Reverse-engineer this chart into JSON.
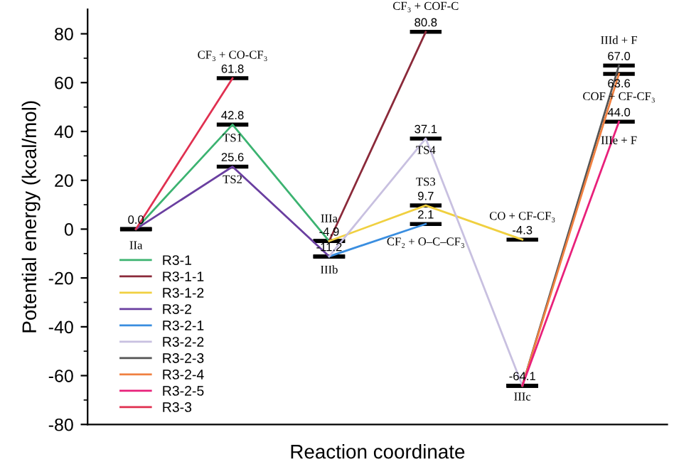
{
  "chart_data": {
    "type": "line",
    "xlabel": "Reaction coordinate",
    "ylabel": "Potential energy (kcal/mol)",
    "categories": [
      null,
      null,
      null,
      null,
      null,
      null
    ],
    "ylim": [
      -80,
      90
    ],
    "yticks": [
      -80,
      -60,
      -40,
      -20,
      0,
      20,
      40,
      60,
      80
    ],
    "grid": false,
    "legend": "bottom left",
    "line_style": "solid",
    "series": [
      {
        "name": "R3-1",
        "color": "#3cb371",
        "values": [
          0.0,
          42.8,
          -4.9,
          null,
          null,
          null
        ],
        "value_labels": [
          "0.0",
          "42.8",
          "-4.9",
          null,
          null,
          null
        ]
      },
      {
        "name": "R3-1-1",
        "color": "#8b2a3a",
        "values": [
          null,
          null,
          -4.9,
          80.8,
          null,
          null
        ],
        "value_labels": [
          null,
          null,
          null,
          "80.8",
          null,
          null
        ]
      },
      {
        "name": "R3-1-2",
        "color": "#f0d040",
        "values": [
          null,
          null,
          -4.9,
          9.7,
          -4.3,
          null
        ],
        "value_labels": [
          null,
          null,
          null,
          "9.7",
          "-4.3",
          null
        ]
      },
      {
        "name": "R3-2",
        "color": "#6a3fa0",
        "values": [
          0.0,
          25.6,
          -11.2,
          null,
          null,
          null
        ],
        "value_labels": [
          null,
          "25.6",
          "-11.2",
          null,
          null,
          null
        ]
      },
      {
        "name": "R3-2-1",
        "color": "#3a8ee0",
        "values": [
          null,
          null,
          -11.2,
          2.1,
          null,
          null
        ],
        "value_labels": [
          null,
          null,
          null,
          "2.1",
          null,
          null
        ]
      },
      {
        "name": "R3-2-2",
        "color": "#c8c0e0",
        "values": [
          null,
          null,
          -11.2,
          37.1,
          -64.1,
          null
        ],
        "value_labels": [
          null,
          null,
          null,
          "37.1",
          "-64.1",
          null
        ]
      },
      {
        "name": "R3-2-3",
        "color": "#555555",
        "values": [
          null,
          null,
          null,
          null,
          -64.1,
          67.0
        ],
        "value_labels": [
          null,
          null,
          null,
          null,
          null,
          "67.0"
        ]
      },
      {
        "name": "R3-2-4",
        "color": "#f08040",
        "values": [
          null,
          null,
          null,
          null,
          -64.1,
          63.6
        ],
        "value_labels": [
          null,
          null,
          null,
          null,
          null,
          "63.6"
        ]
      },
      {
        "name": "R3-2-5",
        "color": "#e8207a",
        "values": [
          null,
          null,
          null,
          null,
          -64.1,
          44.0
        ],
        "value_labels": [
          null,
          null,
          null,
          null,
          null,
          "44.0"
        ]
      },
      {
        "name": "R3-3",
        "color": "#e03050",
        "values": [
          0.0,
          61.8,
          null,
          null,
          null,
          null
        ],
        "value_labels": [
          null,
          "61.8",
          null,
          null,
          null,
          null
        ]
      }
    ],
    "annotations": [
      "IIa",
      "CF₃ + CO-CF₃",
      "TS1",
      "TS2",
      "IIIa",
      "IIIb",
      "CF₃ + COF-C",
      "TS4",
      "TS3",
      "CF₂ + O–C–CF₃",
      "CO + CF-CF₃",
      "IIIc",
      "IIId + F",
      "COF + CF-CF₃",
      "IIIe + F"
    ]
  }
}
